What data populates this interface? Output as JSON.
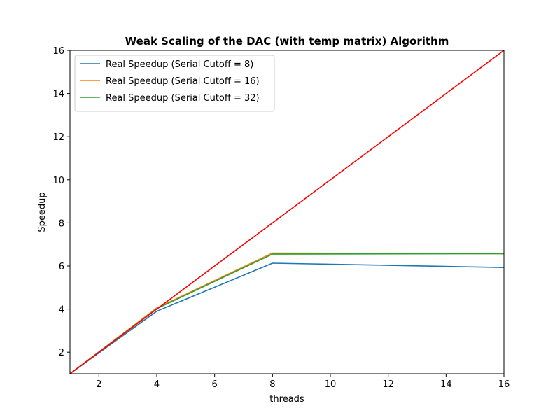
{
  "chart_data": {
    "type": "line",
    "title": "Weak Scaling of the DAC (with temp matrix) Algorithm",
    "xlabel": "threads",
    "ylabel": "Speedup",
    "xlim": [
      1,
      16
    ],
    "ylim": [
      1,
      16
    ],
    "xticks": [
      2,
      4,
      6,
      8,
      10,
      12,
      14,
      16
    ],
    "yticks": [
      2,
      4,
      6,
      8,
      10,
      12,
      14,
      16
    ],
    "grid": false,
    "legend_position": "upper-left",
    "series": [
      {
        "name": "Real Speedup (Serial Cutoff = 8)",
        "color": "#1f77b4",
        "x": [
          1,
          4,
          8,
          16
        ],
        "y": [
          1.0,
          3.9,
          6.13,
          5.93
        ]
      },
      {
        "name": "Real Speedup (Serial Cutoff = 16)",
        "color": "#ff7f0e",
        "x": [
          1,
          4,
          8,
          16
        ],
        "y": [
          1.0,
          4.05,
          6.6,
          6.57
        ]
      },
      {
        "name": "Real Speedup (Serial Cutoff = 32)",
        "color": "#2ca02c",
        "x": [
          1,
          4,
          8,
          16
        ],
        "y": [
          1.0,
          4.02,
          6.55,
          6.57
        ]
      },
      {
        "color": "#ff0000",
        "x": [
          1,
          16
        ],
        "y": [
          1,
          16
        ]
      }
    ]
  }
}
